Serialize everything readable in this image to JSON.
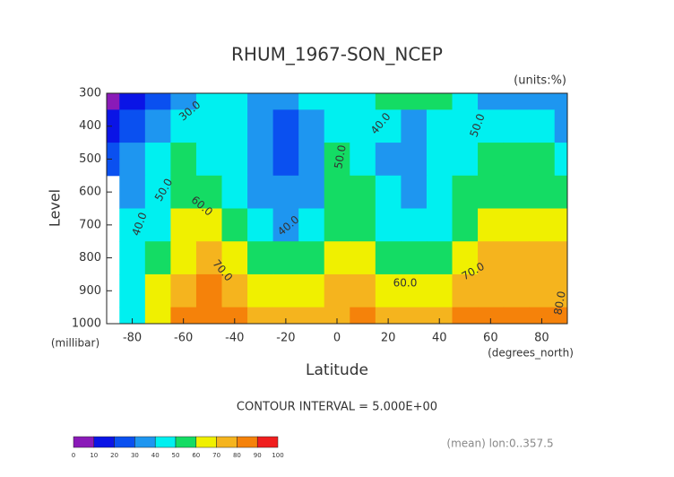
{
  "chart_data": {
    "type": "contour",
    "title": "RHUM_1967-SON_NCEP",
    "subtitle": "(units:%)",
    "ylabel": "Level",
    "yunit": "(millibar)",
    "xlabel": "Latitude",
    "xunit": "(degrees_north)",
    "note": "CONTOUR INTERVAL = 5.000E+00",
    "footer": "(mean) lon:0..357.5",
    "xlim": [
      -90,
      90
    ],
    "ylim": [
      1000,
      300
    ],
    "xticks": [
      -80,
      -60,
      -40,
      -20,
      0,
      20,
      40,
      60,
      80
    ],
    "yticks": [
      300,
      400,
      500,
      600,
      700,
      800,
      900,
      1000
    ],
    "x": [
      -90,
      -80,
      -70,
      -60,
      -50,
      -40,
      -30,
      -20,
      -10,
      0,
      10,
      20,
      30,
      40,
      50,
      60,
      70,
      80,
      90
    ],
    "y": [
      300,
      400,
      500,
      600,
      700,
      800,
      900,
      1000
    ],
    "z": [
      [
        5,
        15,
        25,
        35,
        42,
        45,
        38,
        35,
        42,
        45,
        48,
        50,
        55,
        52,
        45,
        38,
        35,
        38,
        32
      ],
      [
        15,
        25,
        32,
        40,
        45,
        42,
        35,
        28,
        35,
        45,
        42,
        40,
        35,
        40,
        45,
        48,
        45,
        40,
        38
      ],
      [
        28,
        35,
        42,
        50,
        48,
        42,
        35,
        28,
        35,
        50,
        48,
        38,
        35,
        40,
        48,
        52,
        52,
        50,
        48
      ],
      [
        null,
        38,
        45,
        55,
        55,
        48,
        38,
        32,
        38,
        55,
        50,
        40,
        38,
        42,
        50,
        55,
        58,
        58,
        55
      ],
      [
        null,
        40,
        48,
        62,
        62,
        55,
        42,
        38,
        45,
        58,
        52,
        42,
        40,
        45,
        55,
        62,
        65,
        65,
        62
      ],
      [
        null,
        40,
        55,
        68,
        70,
        65,
        55,
        50,
        55,
        65,
        62,
        55,
        50,
        55,
        65,
        72,
        72,
        70,
        70
      ],
      [
        null,
        42,
        60,
        75,
        80,
        75,
        68,
        62,
        65,
        72,
        75,
        65,
        62,
        68,
        75,
        78,
        78,
        78,
        78
      ],
      [
        null,
        45,
        62,
        80,
        85,
        85,
        78,
        75,
        75,
        78,
        80,
        78,
        75,
        78,
        85,
        88,
        85,
        82,
        80
      ]
    ],
    "contour_labels": [
      "30.0",
      "40.0",
      "50.0",
      "60.0",
      "70.0",
      "40.0",
      "50.0",
      "40.0",
      "60.0",
      "70.0",
      "50.0",
      "80.0"
    ],
    "colorbar": {
      "levels": [
        0,
        10,
        20,
        30,
        40,
        50,
        60,
        70,
        80,
        90,
        100
      ],
      "colors": [
        "#8a1ab8",
        "#0a14e6",
        "#0a50f0",
        "#1e96f0",
        "#00f0f0",
        "#14dc64",
        "#f0f000",
        "#f5b41e",
        "#f5820a",
        "#f01e1e"
      ]
    }
  }
}
